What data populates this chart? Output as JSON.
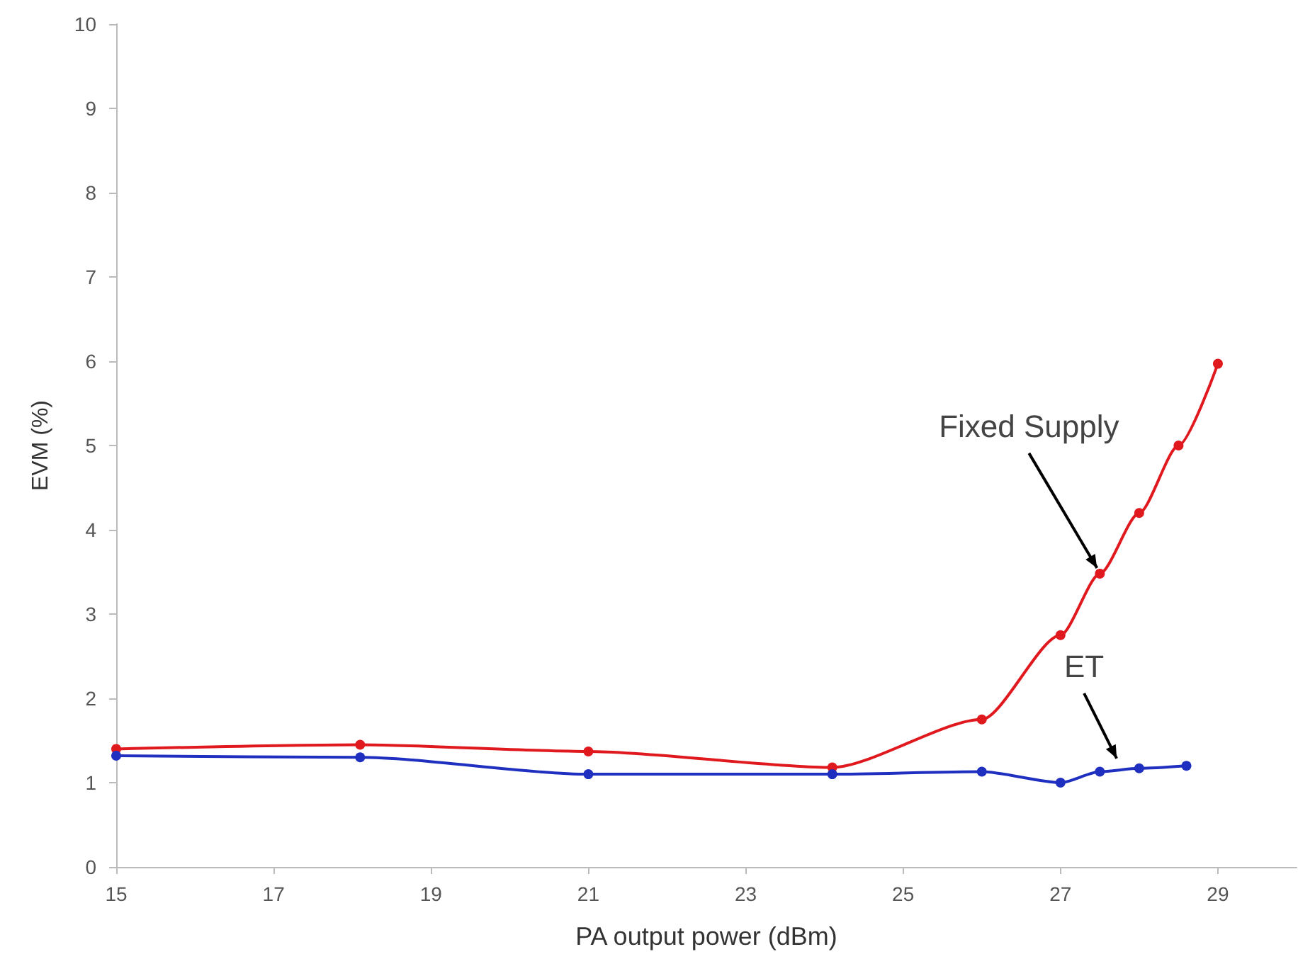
{
  "chart_data": {
    "type": "line",
    "xlabel": "PA output power (dBm)",
    "ylabel": "EVM (%)",
    "xlim": [
      15,
      30
    ],
    "xticks": [
      15,
      17,
      19,
      21,
      23,
      25,
      27,
      29
    ],
    "ylim": [
      0,
      10
    ],
    "yticks": [
      0,
      1,
      2,
      3,
      4,
      5,
      6,
      7,
      8,
      9,
      10
    ],
    "grid": false,
    "marker": "circle",
    "line_style": "solid",
    "series": [
      {
        "color": "#e0191f",
        "x": [
          15,
          18.1,
          21,
          24.1,
          26,
          27,
          27.5,
          28,
          28.5,
          29
        ],
        "values": [
          1.4,
          1.45,
          1.37,
          1.18,
          1.75,
          2.75,
          3.48,
          4.2,
          5.0,
          5.97
        ]
      },
      {
        "color": "#1f2fc0",
        "x": [
          15,
          18.1,
          21,
          24.1,
          26,
          27,
          27.5,
          28,
          28.6
        ],
        "values": [
          1.32,
          1.3,
          1.1,
          1.1,
          1.13,
          1.0,
          1.13,
          1.17,
          1.2
        ]
      }
    ],
    "annotations": [
      {
        "text": "Fixed Supply",
        "x": 27.5,
        "y": 3.48
      },
      {
        "text": "ET",
        "x": 27.75,
        "y": 1.22
      }
    ]
  }
}
